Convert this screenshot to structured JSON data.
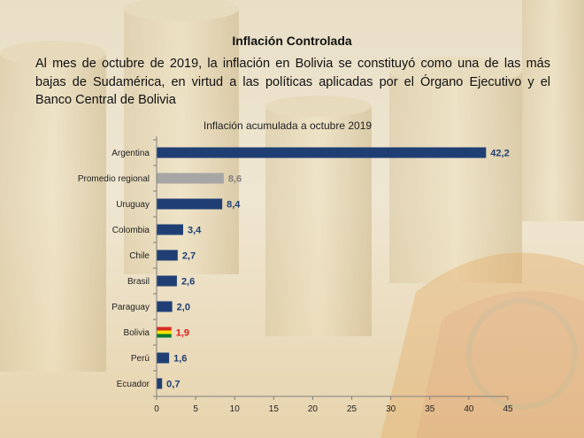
{
  "page": {
    "title": "Inflación Controlada",
    "body": "Al mes de octubre de 2019, la inflación en Bolivia se constituyó como una de las más bajas de Sudamérica, en virtud a las políticas aplicadas por el Órgano Ejecutivo y el Banco Central de Bolivia"
  },
  "chart_data": {
    "type": "bar",
    "orientation": "horizontal",
    "title": "Inflación acumulada a octubre 2019",
    "categories": [
      "Argentina",
      "Promedio regional",
      "Uruguay",
      "Colombia",
      "Chile",
      "Brasil",
      "Paraguay",
      "Bolivia",
      "Perú",
      "Ecuador"
    ],
    "values": [
      42.2,
      8.6,
      8.4,
      3.4,
      2.7,
      2.6,
      2.0,
      1.9,
      1.6,
      0.7
    ],
    "value_labels": [
      "42,2",
      "8,6",
      "8,4",
      "3,4",
      "2,7",
      "2,6",
      "2,0",
      "1,9",
      "1,6",
      "0,7"
    ],
    "xlim": [
      0,
      45
    ],
    "xticks": [
      0,
      5,
      10,
      15,
      20,
      25,
      30,
      35,
      40,
      45
    ],
    "grid": false,
    "colors": {
      "default_bar": "#1f3f74",
      "regional_bar": "#a6a6a6",
      "default_label": "#1f3f74",
      "regional_label": "#808080",
      "bolivia_label": "#e0191a",
      "bolivia_flag": [
        "#d52b1e",
        "#f9e300",
        "#007934"
      ]
    },
    "highlight": {
      "Promedio regional": "regional",
      "Bolivia": "flag"
    }
  }
}
